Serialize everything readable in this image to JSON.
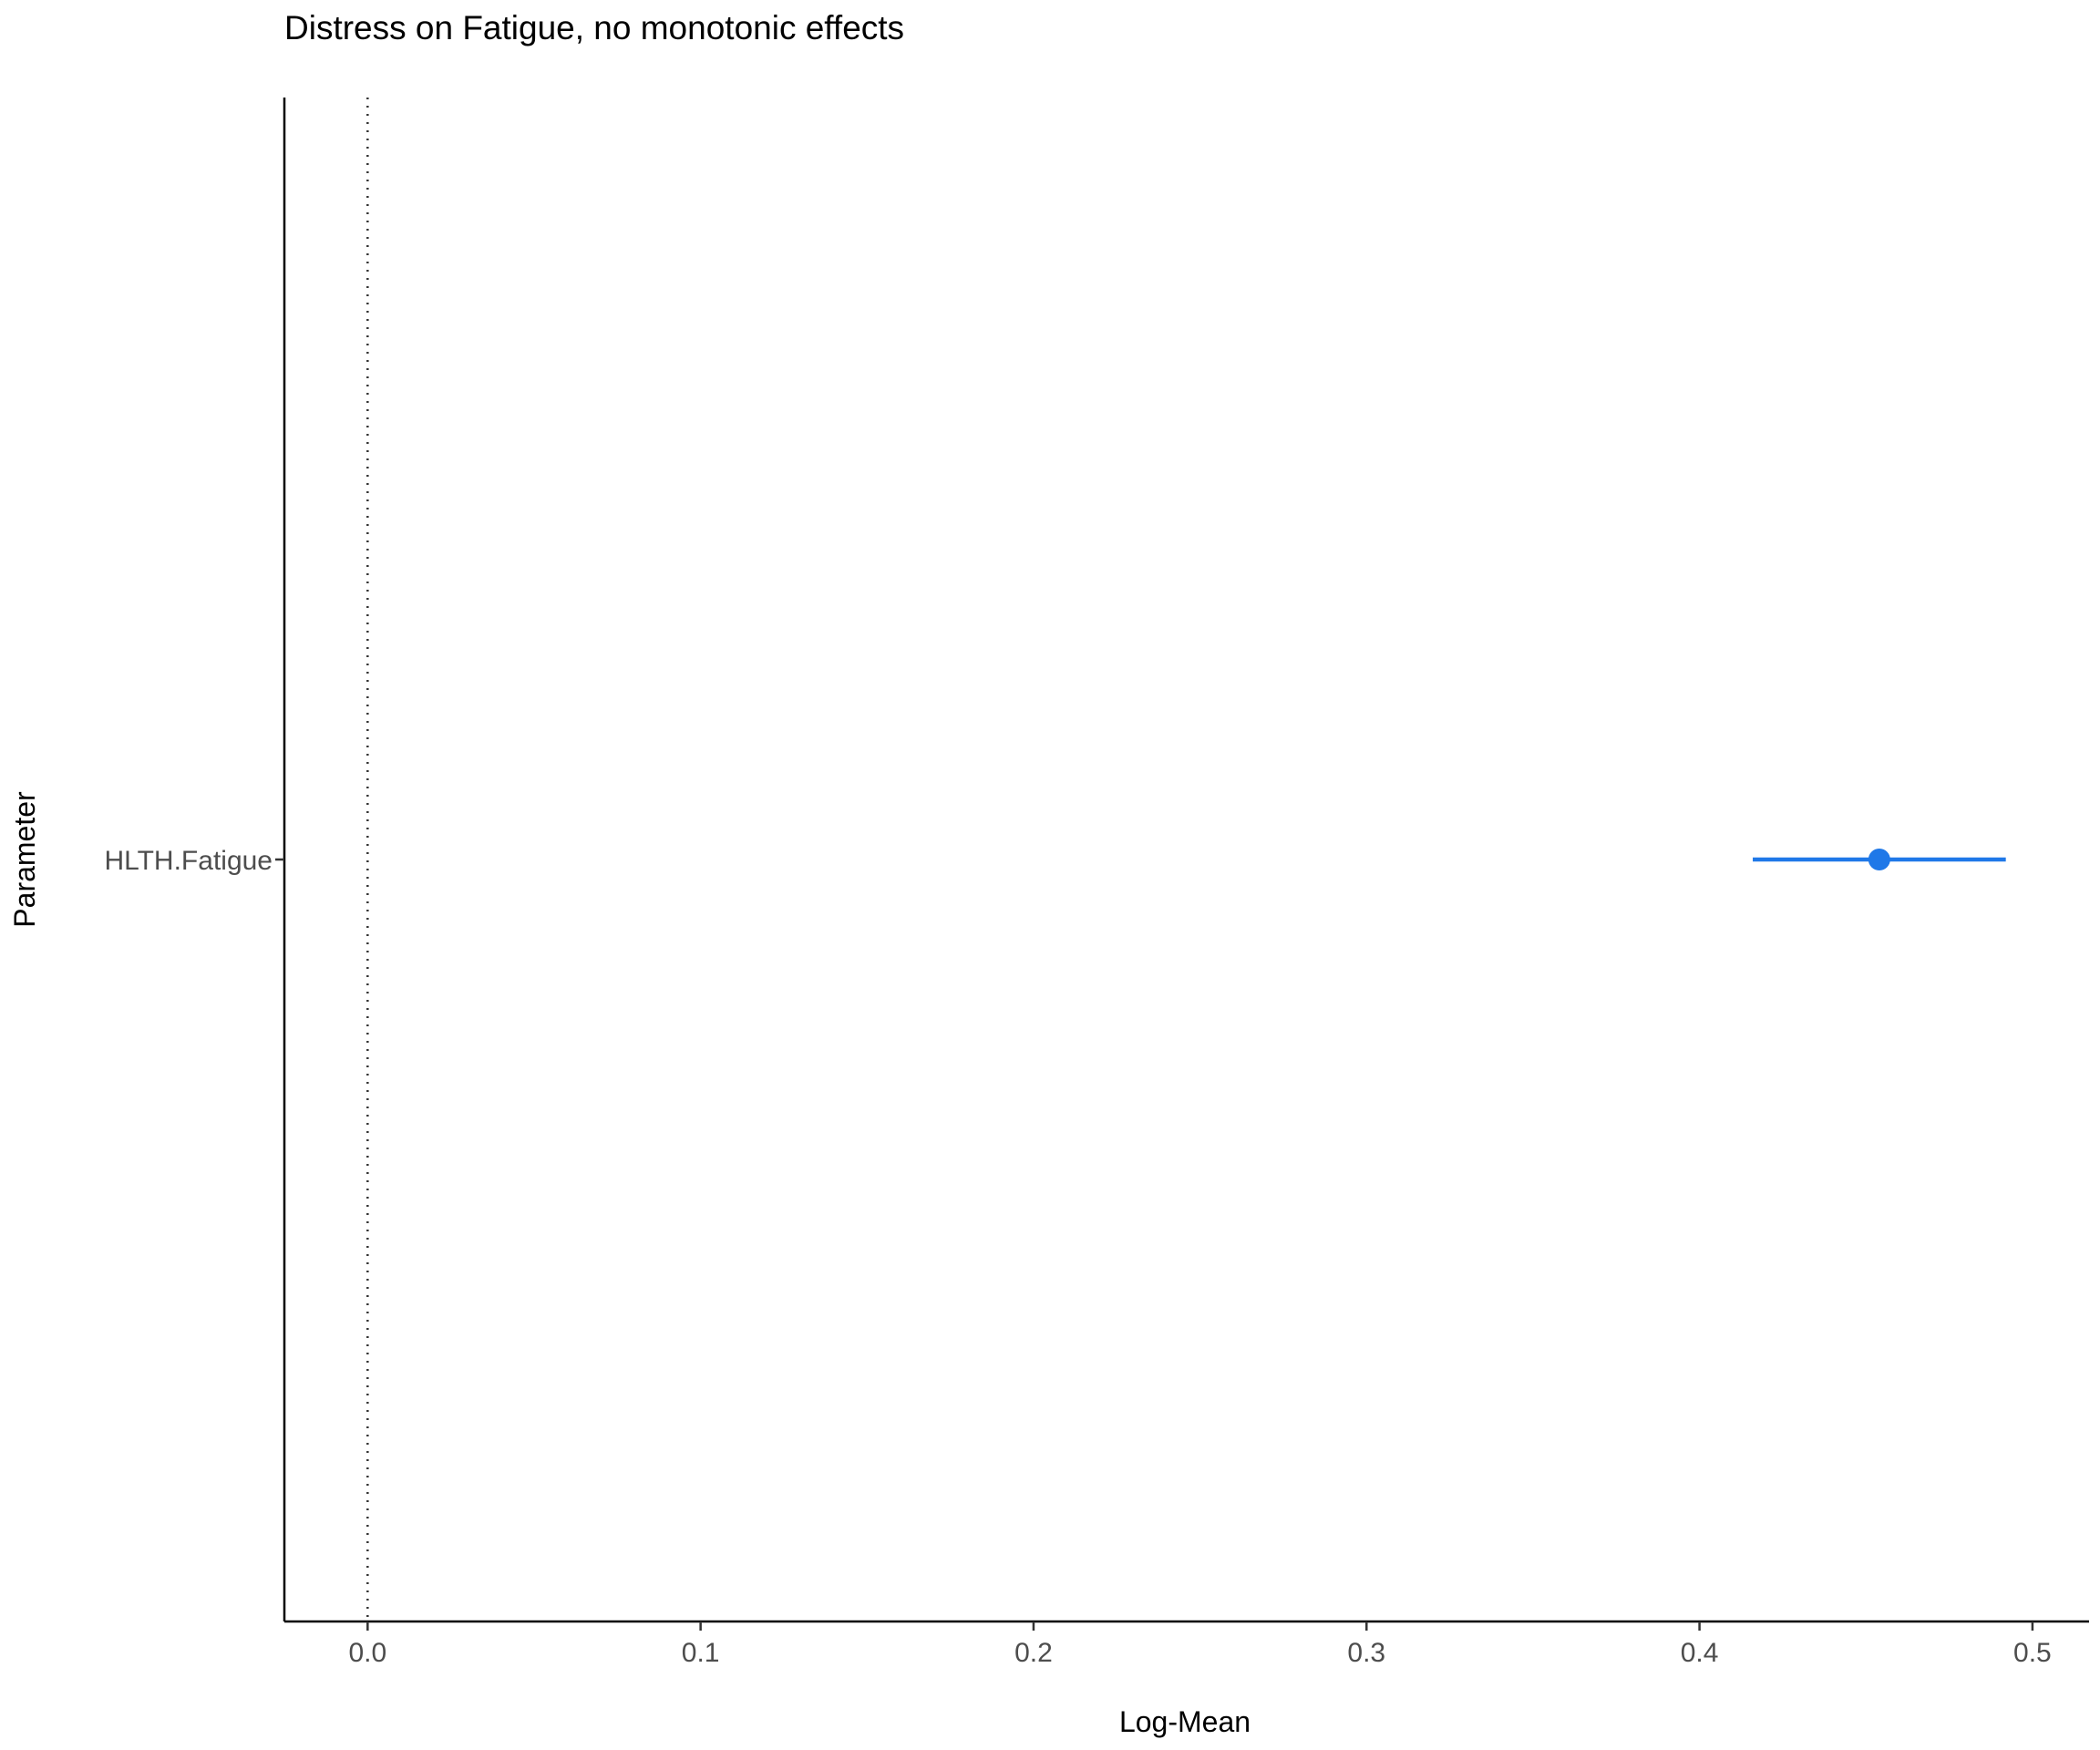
{
  "chart_data": {
    "type": "dot-and-interval",
    "title": "Distress on Fatigue, no monotonic effects",
    "xlabel": "Log-Mean",
    "ylabel": "Parameter",
    "xlim": [
      -0.025,
      0.517
    ],
    "x_ticks": [
      0.0,
      0.1,
      0.2,
      0.3,
      0.4,
      0.5
    ],
    "x_tick_labels": [
      "0.0",
      "0.1",
      "0.2",
      "0.3",
      "0.4",
      "0.5"
    ],
    "categories": [
      "HLTH.Fatigue"
    ],
    "points": [
      {
        "parameter": "HLTH.Fatigue",
        "estimate": 0.454,
        "ci_low": 0.416,
        "ci_high": 0.492
      }
    ],
    "reference_line_x": 0.0,
    "grid": false,
    "legend": "none",
    "colors": {
      "point": "#1f78e8",
      "interval": "#1f78e8",
      "reference_line": "#333333",
      "axis": "#000000"
    }
  }
}
